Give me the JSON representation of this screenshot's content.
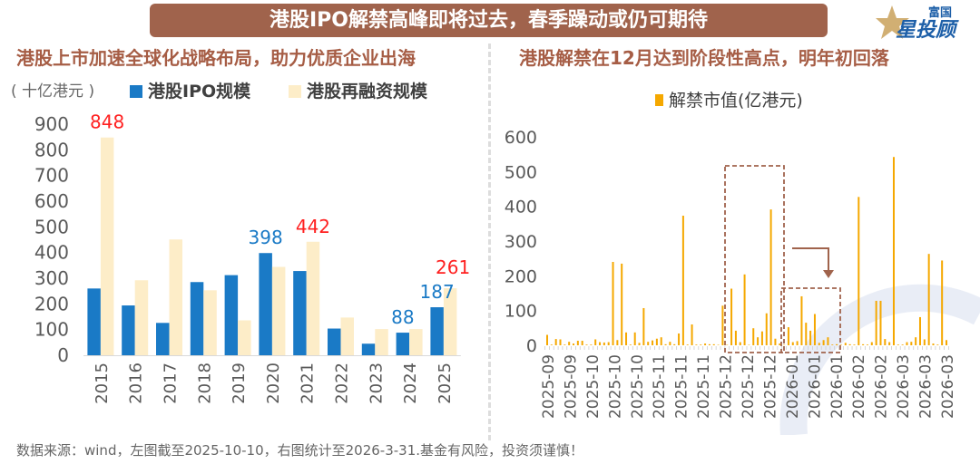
{
  "header": {
    "title": "港股IPO解禁高峰即将过去，春季躁动或仍可期待",
    "logo_top": "富国",
    "logo_main": "星投顾"
  },
  "footer": {
    "note": "数据来源：wind，左图截至2025-10-10，右图统计至2026-3-31.基金有风险，投资须谨慎！"
  },
  "colors": {
    "ipo": "#1a7ac6",
    "refi": "#fdedc8",
    "unlock": "#f5a800",
    "accent": "#a0634c",
    "label_red": "#ff2020",
    "label_blue": "#1a7ac6"
  },
  "chart_data": [
    {
      "type": "bar",
      "title": "港股上市加速全球化战略布局，助力优质企业出海",
      "ylabel": "( 十亿港元 )",
      "categories": [
        "2015",
        "2016",
        "2017",
        "2018",
        "2019",
        "2020",
        "2021",
        "2022",
        "2023",
        "2024",
        "2025"
      ],
      "series": [
        {
          "name": "港股IPO规模",
          "values": [
            260,
            194,
            126,
            285,
            312,
            398,
            328,
            104,
            45,
            88,
            187
          ]
        },
        {
          "name": "港股再融资规模",
          "values": [
            848,
            292,
            451,
            253,
            136,
            344,
            442,
            147,
            102,
            102,
            261
          ]
        }
      ],
      "data_labels": [
        {
          "category": "2015",
          "series": 1,
          "text": "848",
          "color": "red"
        },
        {
          "category": "2020",
          "series": 0,
          "text": "398",
          "color": "blue"
        },
        {
          "category": "2021",
          "series": 1,
          "text": "442",
          "color": "red"
        },
        {
          "category": "2024",
          "series": 0,
          "text": "88",
          "color": "blue"
        },
        {
          "category": "2025",
          "series": 0,
          "text": "187",
          "color": "blue"
        },
        {
          "category": "2025",
          "series": 1,
          "text": "261",
          "color": "red"
        }
      ],
      "yticks": [
        "0",
        "100",
        "200",
        "300",
        "400",
        "500",
        "600",
        "700",
        "800",
        "900"
      ],
      "ylim": [
        0,
        900
      ],
      "legend": "top",
      "grid": false
    },
    {
      "type": "bar",
      "title": "港股解禁在12月达到阶段性高点，明年初回落",
      "series": [
        {
          "name": "解禁市值(亿港元)",
          "values": [
            30,
            2,
            18,
            17,
            2,
            10,
            5,
            13,
            13,
            2,
            2,
            17,
            9,
            8,
            9,
            240,
            15,
            235,
            37,
            2,
            37,
            7,
            107,
            10,
            14,
            19,
            23,
            3,
            10,
            3,
            34,
            373,
            2,
            60,
            2,
            2,
            5,
            3,
            3,
            0,
            114,
            1,
            163,
            42,
            9,
            204,
            1,
            49,
            23,
            40,
            92,
            391,
            19,
            5,
            0,
            52,
            9,
            12,
            141,
            65,
            42,
            90,
            7,
            15,
            23,
            2,
            3,
            0,
            7,
            3,
            2,
            427,
            3,
            2,
            9,
            128,
            128,
            18,
            9,
            542,
            2,
            2,
            9,
            10,
            23,
            81,
            17,
            263,
            5,
            2,
            244,
            15
          ]
        }
      ],
      "xtick_labels": [
        "2025-09",
        "2025-09",
        "2025-10",
        "2025-10",
        "2025-10",
        "2025-11",
        "2025-11",
        "2025-11",
        "2025-12",
        "2025-12",
        "2025-12",
        "2026-01",
        "2026-01",
        "2026-01",
        "2026-02",
        "2026-02",
        "2026-03",
        "2026-03",
        "2026-03"
      ],
      "yticks": [
        "0",
        "100",
        "200",
        "300",
        "400",
        "500",
        "600"
      ],
      "ylim": [
        0,
        600
      ],
      "legend": "top",
      "grid": false,
      "annotations": [
        "dashed box around December 2025 peak",
        "arrow pointing to dashed box around January 2026"
      ]
    }
  ]
}
